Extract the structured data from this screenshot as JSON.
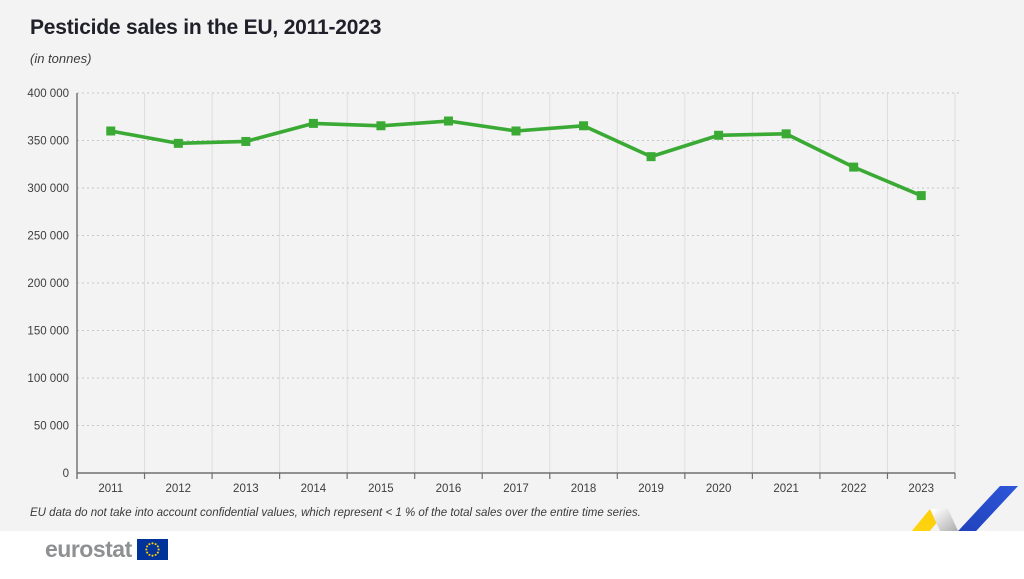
{
  "chart_data": {
    "type": "line",
    "title": "Pesticide sales in the EU, 2011-2023",
    "subtitle": "(in tonnes)",
    "categories": [
      "2011",
      "2012",
      "2013",
      "2014",
      "2015",
      "2016",
      "2017",
      "2018",
      "2019",
      "2020",
      "2021",
      "2022",
      "2023"
    ],
    "series": [
      {
        "name": "Pesticide sales",
        "values": [
          360000,
          347000,
          349000,
          368000,
          365500,
          370500,
          360000,
          365500,
          333000,
          355500,
          357000,
          322000,
          292000
        ]
      }
    ],
    "ylim": [
      0,
      400000
    ],
    "ytick_step": 50000,
    "y_tick_labels": [
      "0",
      "50 000",
      "100 000",
      "150 000",
      "200 000",
      "250 000",
      "300 000",
      "350 000",
      "400 000"
    ],
    "xlabel": "",
    "ylabel": "",
    "legend": "none",
    "grid": "horizontal dotted gridlines, vertical solid band separators",
    "line_color": "#3aaa35",
    "marker": "square"
  },
  "footnote": "EU data do not take into account confidential values, which represent < 1 % of the total sales over the entire time series.",
  "footer": {
    "logo_text": "eurostat",
    "flag_background": "#003399",
    "flag_stars": "#ffcc00"
  },
  "decoration": {
    "name": "eurostat-zigzag-ribbon",
    "yellow": "#ffd617",
    "blue": "#2447c9",
    "fold": "#a8a8a8"
  },
  "colors": {
    "background": "#f3f3f3",
    "footer_background": "#ffffff",
    "axis": "#6f6f6f",
    "grid_dotted": "#c6c6c6",
    "grid_vertical": "#dedede",
    "text": "#3d3d3d"
  }
}
